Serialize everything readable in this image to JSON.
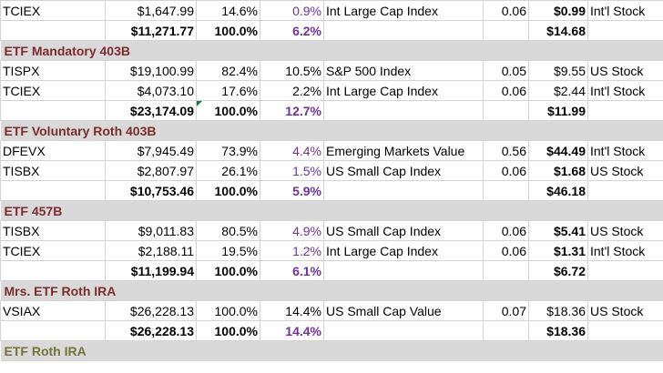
{
  "colors": {
    "section_bg": "#d9d9d9",
    "section_text": "#7b2c2c",
    "olive_text": "#76723a",
    "purple": "#7030a0",
    "grid": "#d4d4d4"
  },
  "rows": [
    {
      "kind": "data",
      "ticker": "TCIEX",
      "value": "$1,647.99",
      "alloc": "14.6%",
      "pct": "0.9%",
      "pct_purple": true,
      "fund": "Int Large Cap  Index",
      "er": "0.06",
      "cost": "$0.99",
      "cost_bold": true,
      "cls": "Int'l Stock"
    },
    {
      "kind": "total",
      "value": "$11,271.77",
      "alloc": "100.0%",
      "pct": "6.2%",
      "cost": "$14.68"
    },
    {
      "kind": "section",
      "title": "ETF Mandatory 403B"
    },
    {
      "kind": "data",
      "ticker": "TISPX",
      "value": "$19,100.99",
      "alloc": "82.4%",
      "pct": "10.5%",
      "pct_purple": false,
      "fund": "S&P 500 Index",
      "er": "0.05",
      "cost": "$9.55",
      "cost_bold": false,
      "cls": "US Stock"
    },
    {
      "kind": "data",
      "ticker": "TCIEX",
      "value": "$4,073.10",
      "alloc": "17.6%",
      "pct": "2.2%",
      "pct_purple": false,
      "fund": "Int Large Cap  Index",
      "er": "0.06",
      "cost": "$2.44",
      "cost_bold": false,
      "cls": "Int'l Stock"
    },
    {
      "kind": "total",
      "value": "$23,174.09",
      "alloc": "100.0%",
      "pct": "12.7%",
      "cost": "$11.99",
      "corner": true
    },
    {
      "kind": "section",
      "title": "ETF Voluntary Roth 403B"
    },
    {
      "kind": "data",
      "ticker": "DFEVX",
      "value": "$7,945.49",
      "alloc": "73.9%",
      "pct": "4.4%",
      "pct_purple": true,
      "fund": "Emerging Markets Value",
      "er": "0.56",
      "cost": "$44.49",
      "cost_bold": true,
      "cls": "Int'l Stock"
    },
    {
      "kind": "data",
      "ticker": "TISBX",
      "value": "$2,807.97",
      "alloc": "26.1%",
      "pct": "1.5%",
      "pct_purple": true,
      "fund": "US Small Cap Index",
      "er": "0.06",
      "cost": "$1.68",
      "cost_bold": true,
      "cls": "US Stock"
    },
    {
      "kind": "total",
      "value": "$10,753.46",
      "alloc": "100.0%",
      "pct": "5.9%",
      "cost": "$46.18"
    },
    {
      "kind": "section",
      "title": "ETF 457B"
    },
    {
      "kind": "data",
      "ticker": "TISBX",
      "value": "$9,011.83",
      "alloc": "80.5%",
      "pct": "4.9%",
      "pct_purple": true,
      "fund": "US Small Cap Index",
      "er": "0.06",
      "cost": "$5.41",
      "cost_bold": true,
      "cls": "US Stock"
    },
    {
      "kind": "data",
      "ticker": "TCIEX",
      "value": "$2,188.11",
      "alloc": "19.5%",
      "pct": "1.2%",
      "pct_purple": true,
      "fund": "Int Large Cap  Index",
      "er": "0.06",
      "cost": "$1.31",
      "cost_bold": true,
      "cls": "Int'l Stock"
    },
    {
      "kind": "total",
      "value": "$11,199.94",
      "alloc": "100.0%",
      "pct": "6.1%",
      "cost": "$6.72"
    },
    {
      "kind": "section",
      "title": "Mrs. ETF Roth IRA"
    },
    {
      "kind": "data",
      "ticker": "VSIAX",
      "value": "$26,228.13",
      "alloc": "100.0%",
      "pct": "14.4%",
      "pct_purple": false,
      "fund": "US Small Cap Value",
      "er": "0.07",
      "cost": "$18.36",
      "cost_bold": false,
      "cls": "US Stock"
    },
    {
      "kind": "total",
      "value": "$26,228.13",
      "alloc": "100.0%",
      "pct": "14.4%",
      "cost": "$18.36"
    },
    {
      "kind": "section",
      "title": "ETF Roth IRA",
      "olive": true
    }
  ]
}
